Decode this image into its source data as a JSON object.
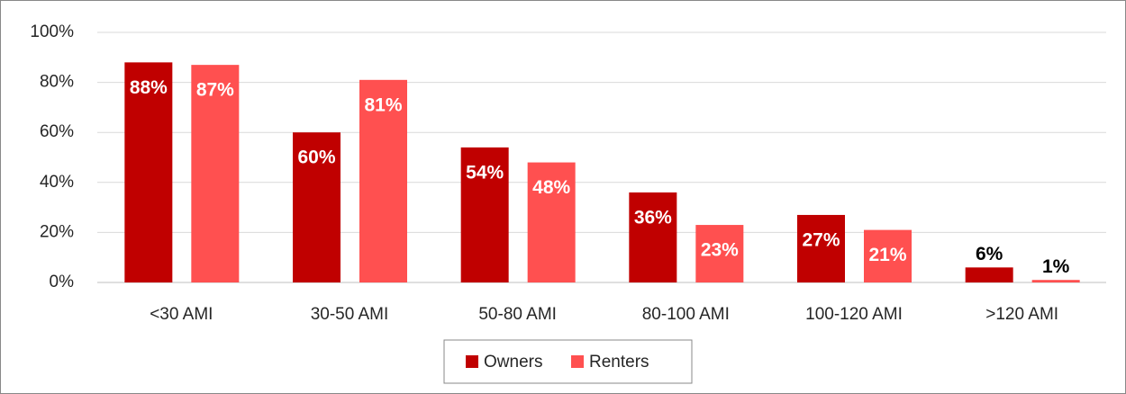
{
  "chart_data": {
    "type": "bar",
    "categories": [
      "<30 AMI",
      "30-50 AMI",
      "50-80 AMI",
      "80-100 AMI",
      "100-120 AMI",
      ">120 AMI"
    ],
    "series": [
      {
        "name": "Owners",
        "color": "#c00000",
        "values": [
          88,
          60,
          54,
          36,
          27,
          6
        ],
        "value_labels": [
          "88%",
          "60%",
          "54%",
          "36%",
          "27%",
          "6%"
        ]
      },
      {
        "name": "Renters",
        "color": "#ff5050",
        "values": [
          87,
          81,
          48,
          23,
          21,
          1
        ],
        "value_labels": [
          "87%",
          "81%",
          "48%",
          "23%",
          "21%",
          "1%"
        ]
      }
    ],
    "ylim": [
      0,
      100
    ],
    "yticks": [
      {
        "value": 0,
        "label": "0%"
      },
      {
        "value": 20,
        "label": "20%"
      },
      {
        "value": 40,
        "label": "40%"
      },
      {
        "value": 60,
        "label": "60%"
      },
      {
        "value": 80,
        "label": "80%"
      },
      {
        "value": 100,
        "label": "100%"
      }
    ],
    "grid": true,
    "legend": "bottom"
  }
}
